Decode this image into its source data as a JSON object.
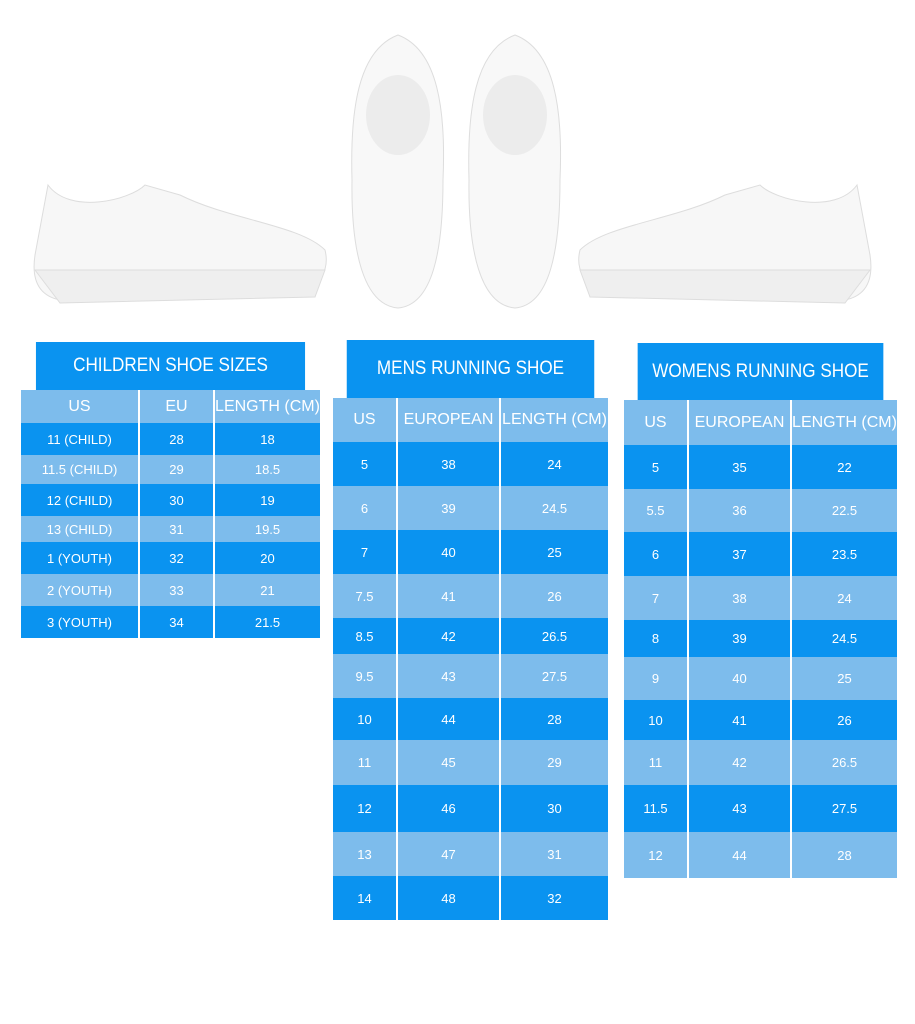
{
  "colors": {
    "dark": "#0a93f0",
    "light": "#7dbcec"
  },
  "images": [
    "shoe-side-left",
    "shoe-top-left",
    "shoe-top-right",
    "shoe-side-right"
  ],
  "children": {
    "title": "CHILDREN SHOE SIZES",
    "headers": [
      "US",
      "EU",
      "LENGTH (CM)"
    ],
    "rows": [
      [
        "11 (CHILD)",
        "28",
        "18"
      ],
      [
        "11.5 (CHILD)",
        "29",
        "18.5"
      ],
      [
        "12 (CHILD)",
        "30",
        "19"
      ],
      [
        "13 (CHILD)",
        "31",
        "19.5"
      ],
      [
        "1 (YOUTH)",
        "32",
        "20"
      ],
      [
        "2 (YOUTH)",
        "33",
        "21"
      ],
      [
        "3 (YOUTH)",
        "34",
        "21.5"
      ]
    ]
  },
  "mens": {
    "title": "MENS RUNNING SHOE",
    "headers": [
      "US",
      "EUROPEAN",
      "LENGTH (CM)"
    ],
    "rows": [
      [
        "5",
        "38",
        "24"
      ],
      [
        "6",
        "39",
        "24.5"
      ],
      [
        "7",
        "40",
        "25"
      ],
      [
        "7.5",
        "41",
        "26"
      ],
      [
        "8.5",
        "42",
        "26.5"
      ],
      [
        "9.5",
        "43",
        "27.5"
      ],
      [
        "10",
        "44",
        "28"
      ],
      [
        "11",
        "45",
        "29"
      ],
      [
        "12",
        "46",
        "30"
      ],
      [
        "13",
        "47",
        "31"
      ],
      [
        "14",
        "48",
        "32"
      ]
    ]
  },
  "womens": {
    "title": "WOMENS RUNNING SHOE",
    "headers": [
      "US",
      "EUROPEAN",
      "LENGTH (CM)"
    ],
    "rows": [
      [
        "5",
        "35",
        "22"
      ],
      [
        "5.5",
        "36",
        "22.5"
      ],
      [
        "6",
        "37",
        "23.5"
      ],
      [
        "7",
        "38",
        "24"
      ],
      [
        "8",
        "39",
        "24.5"
      ],
      [
        "9",
        "40",
        "25"
      ],
      [
        "10",
        "41",
        "26"
      ],
      [
        "11",
        "42",
        "26.5"
      ],
      [
        "11.5",
        "43",
        "27.5"
      ],
      [
        "12",
        "44",
        "28"
      ]
    ]
  }
}
